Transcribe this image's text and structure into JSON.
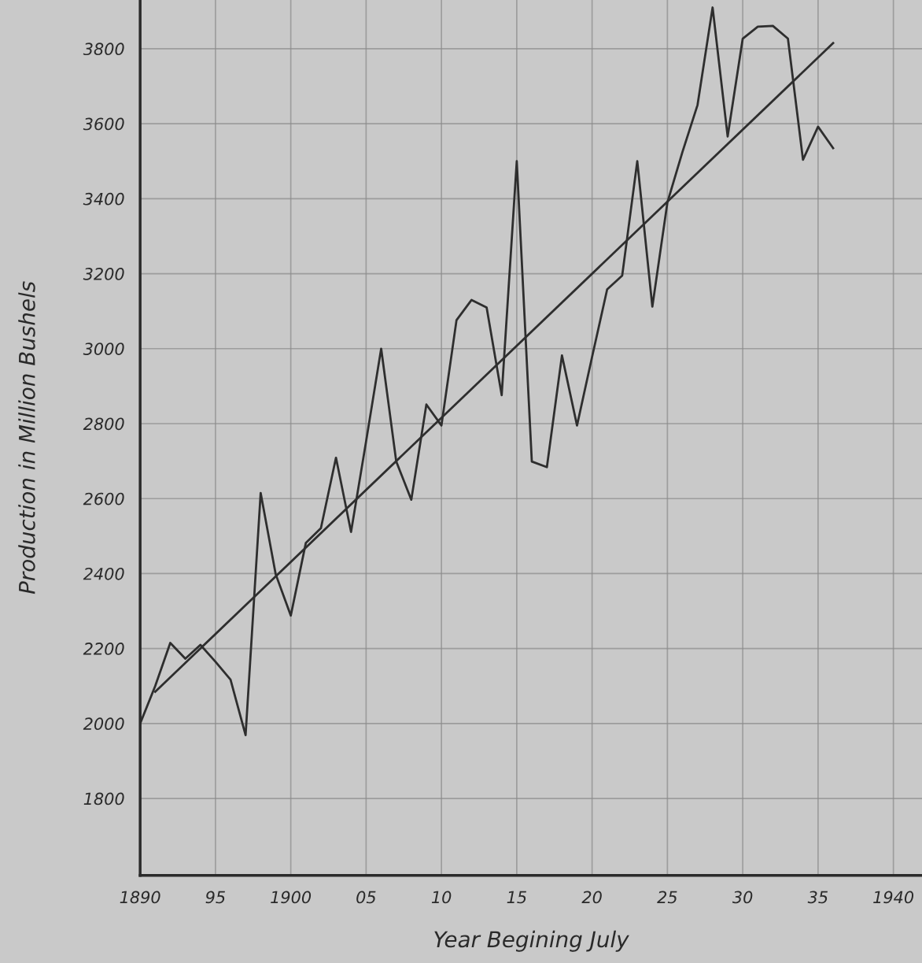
{
  "chart_data": {
    "type": "line",
    "xlabel": "Year Begining July",
    "ylabel": "Production in Million Bushels",
    "xlim": [
      1890,
      1941.9
    ],
    "ylim": [
      1595,
      3930
    ],
    "xticks": [
      {
        "value": 1890,
        "label": "1890"
      },
      {
        "value": 1895,
        "label": "95"
      },
      {
        "value": 1900,
        "label": "1900"
      },
      {
        "value": 1905,
        "label": "05"
      },
      {
        "value": 1910,
        "label": "10"
      },
      {
        "value": 1915,
        "label": "15"
      },
      {
        "value": 1920,
        "label": "20"
      },
      {
        "value": 1925,
        "label": "25"
      },
      {
        "value": 1930,
        "label": "30"
      },
      {
        "value": 1935,
        "label": "35"
      },
      {
        "value": 1940,
        "label": "1940"
      }
    ],
    "yticks": [
      1800,
      2000,
      2200,
      2400,
      2600,
      2800,
      3000,
      3200,
      3400,
      3600,
      3800
    ],
    "grid": true,
    "marker": "none",
    "line_style": "solid",
    "series": [
      {
        "color": "#2e2e2e",
        "x": [
          1890,
          1891,
          1892,
          1893,
          1894,
          1895,
          1896,
          1897,
          1898,
          1899,
          1900,
          1901,
          1902,
          1903,
          1904,
          1905,
          1906,
          1907,
          1908,
          1909,
          1910,
          1911,
          1912,
          1913,
          1914,
          1915,
          1916,
          1917,
          1918,
          1919,
          1920,
          1921,
          1922,
          1923,
          1924,
          1925,
          1926,
          1927,
          1928,
          1929,
          1930,
          1931,
          1932,
          1933,
          1934,
          1935,
          1936
        ],
        "values": [
          2000,
          2100,
          2215,
          2173,
          2210,
          2165,
          2117,
          1969,
          2615,
          2398,
          2288,
          2482,
          2521,
          2709,
          2511,
          2753,
          3000,
          2699,
          2597,
          2851,
          2795,
          3076,
          3130,
          3110,
          2876,
          3500,
          2699,
          2684,
          2982,
          2795,
          2978,
          3158,
          3195,
          3500,
          3112,
          3390,
          3525,
          3650,
          3910,
          3566,
          3827,
          3859,
          3861,
          3827,
          3504,
          3592,
          3535
        ]
      },
      {
        "color": "#2e2e2e",
        "x": [
          1891,
          1936
        ],
        "values": [
          2085,
          3815
        ]
      }
    ]
  }
}
